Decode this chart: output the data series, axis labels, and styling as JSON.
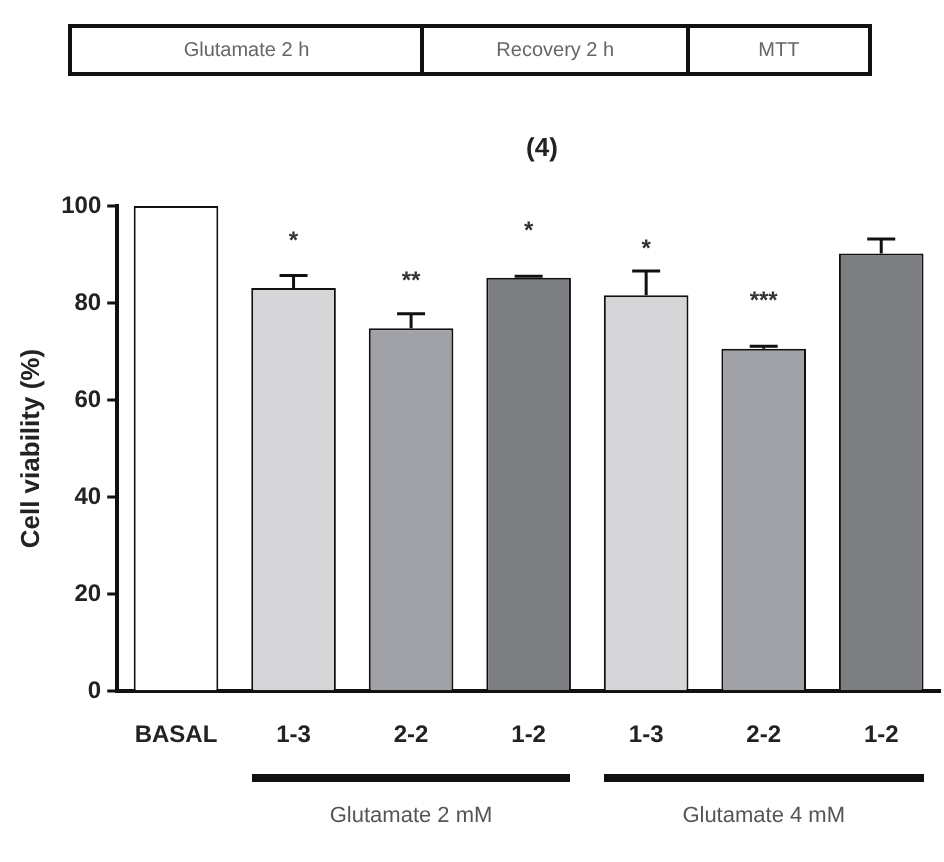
{
  "chart_data": {
    "type": "bar",
    "title": "(4)",
    "ylabel": "Cell viability (%)",
    "categories": [
      "BASAL",
      "1-3",
      "2-2",
      "1-2",
      "1-3",
      "2-2",
      "1-2"
    ],
    "values": [
      100,
      83.1,
      74.8,
      85.2,
      81.6,
      70.6,
      90.2
    ],
    "errors": [
      null,
      2.6,
      3,
      0.3,
      5,
      0.5,
      3
    ],
    "colors": [
      "#ffffff",
      "#d6d6d8",
      "#a0a2a8",
      "#7c7e82",
      "#d6d6d8",
      "#a0a2a8",
      "#7c7e82"
    ],
    "value_labels": [
      null,
      "*",
      "**",
      "*",
      "*",
      "***",
      null
    ],
    "ylim": [
      0,
      100
    ],
    "yticks": [
      0,
      20,
      40,
      60,
      80,
      100
    ],
    "grid": false,
    "legend": false,
    "annotations": [
      "Glutamate 2 h",
      "Recovery 2 h",
      "MTT",
      "Glutamate 2 mM",
      "Glutamate 4 mM"
    ]
  }
}
